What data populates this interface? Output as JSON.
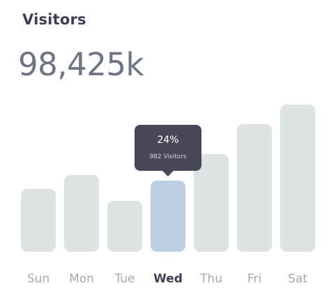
{
  "card": {
    "title": "Visitors",
    "total": "98,425k"
  },
  "tooltip": {
    "percent": "24%",
    "visitors": "982 Visitors"
  },
  "chart_data": {
    "type": "bar",
    "categories": [
      "Sun",
      "Mon",
      "Tue",
      "Wed",
      "Thu",
      "Fri",
      "Sat"
    ],
    "values": [
      90,
      110,
      73,
      102,
      140,
      183,
      211
    ],
    "highlighted": "Wed",
    "colors": {
      "bar": "#dce3e2",
      "highlight": "#bfcfe3",
      "tooltip": "#4a4758"
    }
  }
}
